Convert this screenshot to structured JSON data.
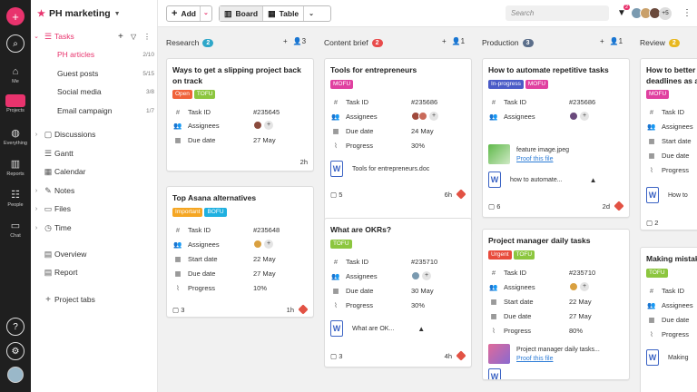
{
  "rail": {
    "items": [
      {
        "label": "Me"
      },
      {
        "label": "Projects"
      },
      {
        "label": "Everything"
      },
      {
        "label": "Reports"
      },
      {
        "label": "People"
      },
      {
        "label": "Chat"
      }
    ]
  },
  "sidebar": {
    "project_name": "PH marketing",
    "tasks_label": "Tasks",
    "tasks_subitems": [
      {
        "label": "PH articles",
        "count": "2/10"
      },
      {
        "label": "Guest posts",
        "count": "5/15"
      },
      {
        "label": "Social media",
        "count": "3/8"
      },
      {
        "label": "Email campaign",
        "count": "1/7"
      }
    ],
    "sections": [
      {
        "label": "Discussions"
      },
      {
        "label": "Gantt"
      },
      {
        "label": "Calendar"
      },
      {
        "label": "Notes"
      },
      {
        "label": "Files"
      },
      {
        "label": "Time"
      },
      {
        "label": "Overview"
      },
      {
        "label": "Report"
      },
      {
        "label": "Project tabs"
      }
    ]
  },
  "toolbar": {
    "add_label": "Add",
    "board_label": "Board",
    "table_label": "Table",
    "search_placeholder": "Search",
    "filter_count": "2",
    "extra_members": "+5"
  },
  "columns": [
    {
      "name": "Research",
      "count": "2",
      "members": "3",
      "color": "#2ea7c9"
    },
    {
      "name": "Content brief",
      "count": "2",
      "members": "1",
      "color": "#e84b4b"
    },
    {
      "name": "Production",
      "count": "3",
      "members": "1",
      "color": "#5b6e8a"
    },
    {
      "name": "Review",
      "count": "2",
      "color": "#e8b820"
    }
  ],
  "field_labels": {
    "task_id": "Task ID",
    "assignees": "Assignees",
    "start_date": "Start date",
    "due_date": "Due date",
    "progress": "Progress"
  },
  "cards": {
    "r1": {
      "title1": "Ways to get a slipping project back",
      "title2": "on track",
      "tag1": "Open",
      "tag2": "TOFU",
      "task_id": "#235645",
      "due": "27 May",
      "time": "2h"
    },
    "r2": {
      "title": "Top Asana alternatives",
      "tag1": "Important",
      "tag2": "BOFU",
      "task_id": "#235648",
      "start": "22 May",
      "due": "27 May",
      "progress": "10%",
      "comments": "3",
      "time": "1h"
    },
    "c1": {
      "title": "Tools for entrepreneurs",
      "tag1": "MOFU",
      "task_id": "#235686",
      "due": "24 May",
      "progress": "30%",
      "file": "Tools for entrepreneurs.doc",
      "comments": "5",
      "time": "6h"
    },
    "c2": {
      "title": "What are OKRs?",
      "tag1": "TOFU",
      "task_id": "#235710",
      "due": "30 May",
      "progress": "30%",
      "file": "What are OK...",
      "comments": "3",
      "time": "4h"
    },
    "p1": {
      "title": "How to automate repetitive tasks",
      "tag1": "In-progress",
      "tag2": "MOFU",
      "task_id": "#235686",
      "file1": "feature image.jpeg",
      "proof": "Proof this file",
      "file2": "how to automate...",
      "comments": "6",
      "time": "2d"
    },
    "p2": {
      "title": "Project manager daily tasks",
      "tag1": "Urgent",
      "tag2": "TOFU",
      "task_id": "#235710",
      "start": "22 May",
      "due": "27 May",
      "progress": "80%",
      "file1": "Project manager daily tasks...",
      "proof": "Proof this file"
    },
    "v1": {
      "title1": "How to better h",
      "title2": "deadlines as a",
      "tag1": "MOFU",
      "file": "How to",
      "comments": "2"
    },
    "v2": {
      "title": "Making mistake",
      "tag1": "TOFU",
      "file": "Making"
    }
  },
  "colors": {
    "accent": "#e8336d",
    "rail_bg": "#1f1f1f",
    "open": "#f0623a",
    "tofu": "#8cc63f",
    "mofu": "#e040a0",
    "bofu": "#1fb0e0",
    "important": "#f5a623",
    "urgent": "#e84b3c",
    "inprogress": "#4a5bc7"
  }
}
